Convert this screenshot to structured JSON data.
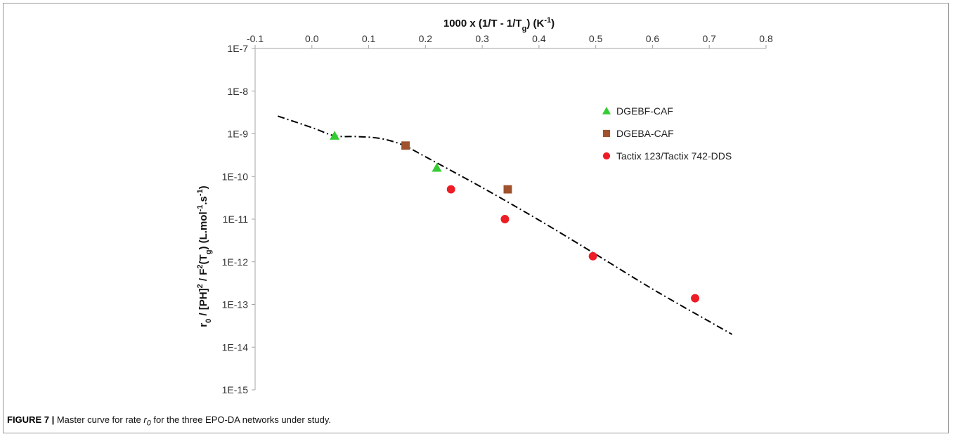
{
  "figure": {
    "caption_label": "FIGURE 7 |",
    "caption_pre": " Master curve for rate ",
    "caption_r0": "r",
    "caption_r0_sub": "0",
    "caption_post": " for the three EPO-DA networks under study."
  },
  "chart_data": {
    "type": "scatter",
    "xlabel": "1000 x (1/T - 1/Tg) (K-1)",
    "ylabel": "r0 / [PH]2 / F2(Tg) (L.mol-1.s-1)",
    "x_axis_position": "top",
    "y_scale": "log",
    "xlim": [
      -0.1,
      0.8
    ],
    "ylim": [
      1e-15,
      1e-07
    ],
    "x_ticks": [
      -0.1,
      0.0,
      0.1,
      0.2,
      0.3,
      0.4,
      0.5,
      0.6,
      0.7,
      0.8
    ],
    "x_tick_labels": [
      "-0.1",
      "0.0",
      "0.1",
      "0.2",
      "0.3",
      "0.4",
      "0.5",
      "0.6",
      "0.7",
      "0.8"
    ],
    "y_ticks": [
      1e-07,
      1e-08,
      1e-09,
      1e-10,
      1e-11,
      1e-12,
      1e-13,
      1e-14,
      1e-15
    ],
    "y_tick_labels": [
      "1E-7",
      "1E-8",
      "1E-9",
      "1E-10",
      "1E-11",
      "1E-12",
      "1E-13",
      "1E-14",
      "1E-15"
    ],
    "grid": false,
    "legend_position": "top-right",
    "series": [
      {
        "name": "DGEBF-CAF",
        "marker": "triangle",
        "color": "#33cc33",
        "points": [
          [
            0.04,
            9e-10
          ],
          [
            0.22,
            1.6e-10
          ]
        ]
      },
      {
        "name": "DGEBA-CAF",
        "marker": "square",
        "color": "#a0522d",
        "points": [
          [
            0.165,
            5.3e-10
          ],
          [
            0.345,
            5e-11
          ]
        ]
      },
      {
        "name": "Tactix 123/Tactix 742-DDS",
        "marker": "circle",
        "color": "#ee1c25",
        "points": [
          [
            0.245,
            5e-11
          ],
          [
            0.34,
            1e-11
          ],
          [
            0.495,
            1.35e-12
          ],
          [
            0.675,
            1.4e-13
          ]
        ]
      }
    ],
    "master_curve": {
      "style": "dash-dot",
      "color": "#000000",
      "points": [
        [
          -0.06,
          2.6e-09
        ],
        [
          0.0,
          1.4e-09
        ],
        [
          0.04,
          9e-10
        ],
        [
          0.08,
          8.6e-10
        ],
        [
          0.12,
          7.8e-10
        ],
        [
          0.16,
          5.5e-10
        ],
        [
          0.2,
          2.9e-10
        ],
        [
          0.3,
          5.5e-11
        ],
        [
          0.4,
          9.5e-12
        ],
        [
          0.5,
          1.5e-12
        ],
        [
          0.6,
          2.3e-13
        ],
        [
          0.7,
          4e-14
        ],
        [
          0.74,
          2e-14
        ]
      ]
    }
  }
}
